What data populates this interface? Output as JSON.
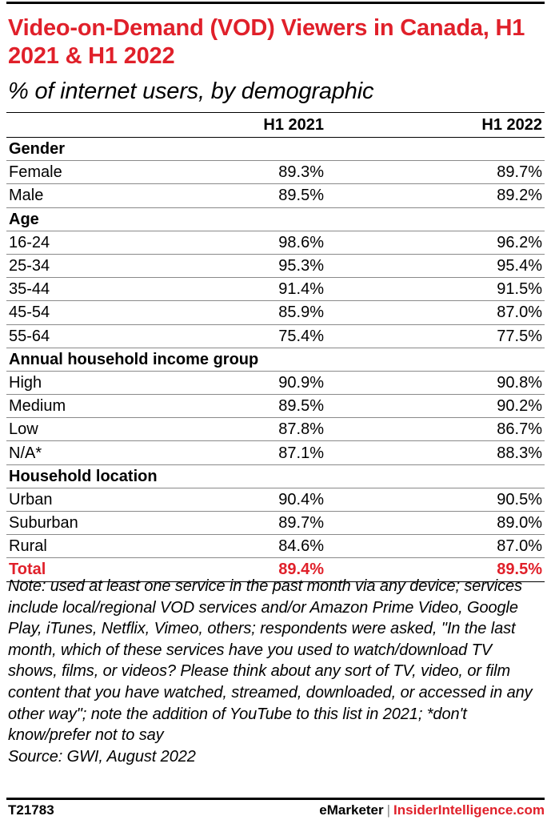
{
  "title": "Video-on-Demand (VOD) Viewers in Canada, H1 2021 & H1 2022",
  "subtitle": "% of internet users, by demographic",
  "columns": [
    "",
    "H1 2021",
    "H1 2022"
  ],
  "chart_data": {
    "type": "table",
    "title": "Video-on-Demand (VOD) Viewers in Canada, H1 2021 & H1 2022",
    "subtitle": "% of internet users, by demographic",
    "columns": [
      "H1 2021",
      "H1 2022"
    ],
    "groups": [
      {
        "name": "Gender",
        "rows": [
          {
            "label": "Female",
            "values": [
              "89.3%",
              "89.7%"
            ]
          },
          {
            "label": "Male",
            "values": [
              "89.5%",
              "89.2%"
            ]
          }
        ]
      },
      {
        "name": "Age",
        "rows": [
          {
            "label": "16-24",
            "values": [
              "98.6%",
              "96.2%"
            ]
          },
          {
            "label": "25-34",
            "values": [
              "95.3%",
              "95.4%"
            ]
          },
          {
            "label": "35-44",
            "values": [
              "91.4%",
              "91.5%"
            ]
          },
          {
            "label": "45-54",
            "values": [
              "85.9%",
              "87.0%"
            ]
          },
          {
            "label": "55-64",
            "values": [
              "75.4%",
              "77.5%"
            ]
          }
        ]
      },
      {
        "name": "Annual household income group",
        "rows": [
          {
            "label": "High",
            "values": [
              "90.9%",
              "90.8%"
            ]
          },
          {
            "label": "Medium",
            "values": [
              "89.5%",
              "90.2%"
            ]
          },
          {
            "label": "Low",
            "values": [
              "87.8%",
              "86.7%"
            ]
          },
          {
            "label": "N/A*",
            "values": [
              "87.1%",
              "88.3%"
            ]
          }
        ]
      },
      {
        "name": "Household location",
        "rows": [
          {
            "label": "Urban",
            "values": [
              "90.4%",
              "90.5%"
            ]
          },
          {
            "label": "Suburban",
            "values": [
              "89.7%",
              "89.0%"
            ]
          },
          {
            "label": "Rural",
            "values": [
              "84.6%",
              "87.0%"
            ]
          }
        ]
      }
    ],
    "total": {
      "label": "Total",
      "values": [
        "89.4%",
        "89.5%"
      ]
    }
  },
  "note": "Note: used at least one service in the past month via any device; services include local/regional VOD services and/or Amazon Prime Video, Google Play, iTunes, Netflix, Vimeo, others; respondents were asked, \"In the last month, which of these services have you used to watch/download TV shows, films, or videos? Please think about any sort of TV, video, or film content that you have watched, streamed, downloaded, or accessed in any other way\"; note the addition of YouTube to this list in 2021; *don't know/prefer not to say",
  "source": "Source: GWI, August 2022",
  "footer": {
    "code": "T21783",
    "brand1": "eMarketer",
    "separator": "|",
    "brand2": "InsiderIntelligence.com"
  },
  "colors": {
    "accent": "#e0202a",
    "text": "#000000",
    "rule": "#8a8a8a"
  }
}
